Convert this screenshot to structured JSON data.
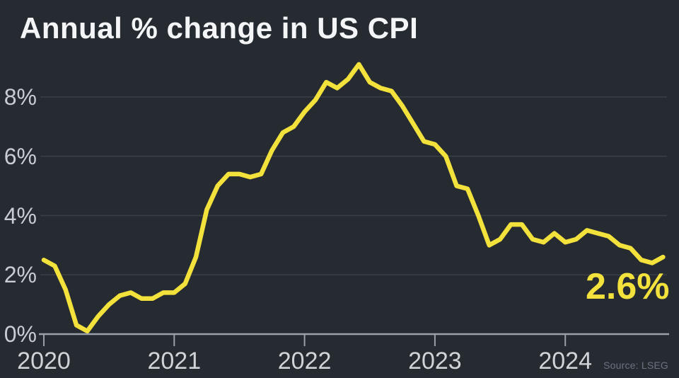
{
  "title": "Annual % change in US CPI",
  "source": "Source: LSEG",
  "colors": {
    "background": "#262b32",
    "line": "#f3e13c",
    "title_text": "#f4f5f6",
    "axis_label": "#c9ccd2",
    "gridline": "#3a3f47",
    "axis_line": "#9aa0a8",
    "annotation": "#f3e13c",
    "source_text": "#6b7280"
  },
  "chart_data": {
    "type": "line",
    "title": "Annual % change in US CPI",
    "xlabel": "",
    "ylabel": "Annual % change",
    "grid": "horizontal",
    "legend": "none",
    "ylim": [
      0,
      9.6
    ],
    "x_range": [
      "2020-01",
      "2024-10"
    ],
    "x_cadence": "monthly",
    "x_tick_labels": [
      "2020",
      "2021",
      "2022",
      "2023",
      "2024"
    ],
    "y_tick_values": [
      0,
      2,
      4,
      6,
      8
    ],
    "y_tick_labels": [
      "0%",
      "2%",
      "4%",
      "6%",
      "8%"
    ],
    "series_name": "US CPI annual % change",
    "values_by_year": {
      "2020": [
        2.5,
        2.3,
        1.5,
        0.3,
        0.1,
        0.6,
        1.0,
        1.3,
        1.4,
        1.2,
        1.2,
        1.4
      ],
      "2021": [
        1.4,
        1.7,
        2.6,
        4.2,
        5.0,
        5.4,
        5.4,
        5.3,
        5.4,
        6.2,
        6.8,
        7.0
      ],
      "2022": [
        7.5,
        7.9,
        8.5,
        8.3,
        8.6,
        9.1,
        8.5,
        8.3,
        8.2,
        7.7,
        7.1,
        6.5
      ],
      "2023": [
        6.4,
        6.0,
        5.0,
        4.9,
        4.0,
        3.0,
        3.2,
        3.7,
        3.7,
        3.2,
        3.1,
        3.4
      ],
      "2024": [
        3.1,
        3.2,
        3.5,
        3.4,
        3.3,
        3.0,
        2.9,
        2.5,
        2.4,
        2.6
      ]
    },
    "last_value_label": "2.6%"
  }
}
